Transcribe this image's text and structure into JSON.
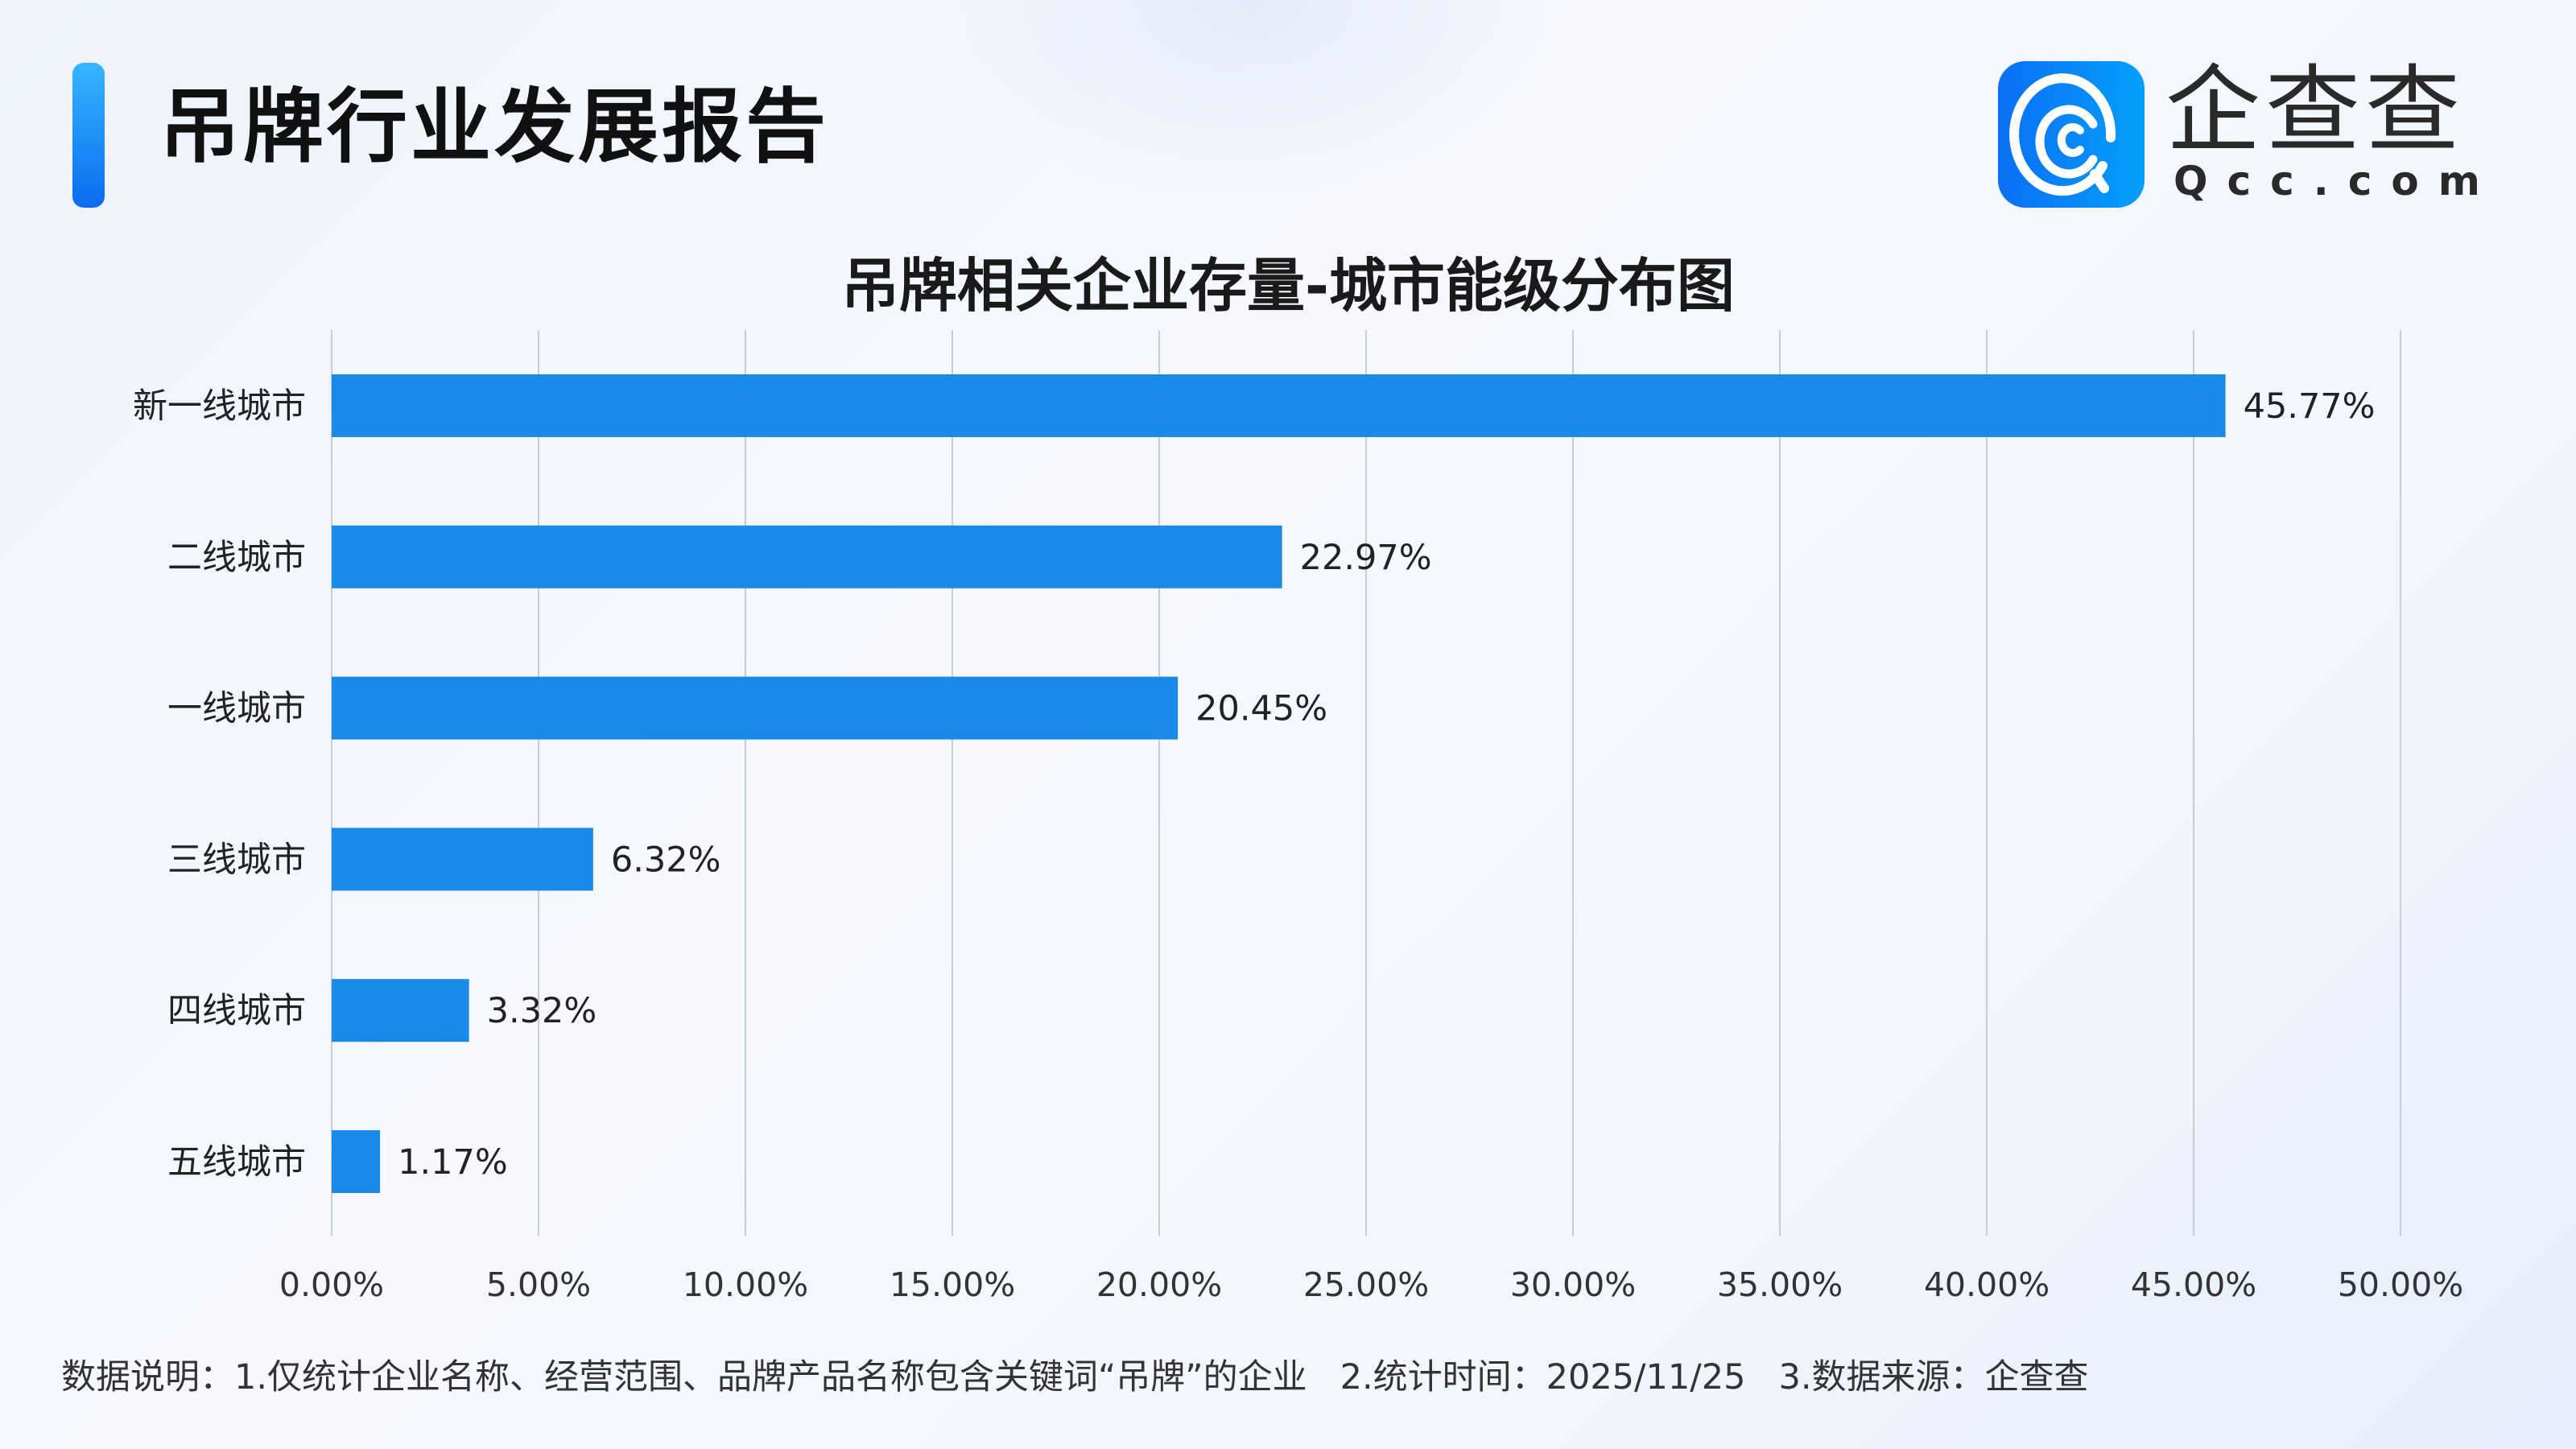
{
  "header": {
    "title": "吊牌行业发展报告"
  },
  "logo": {
    "text": "企查查",
    "sub": "Qcc.com"
  },
  "chart_data": {
    "type": "bar",
    "orientation": "horizontal",
    "title": "吊牌相关企业存量-城市能级分布图",
    "categories": [
      "新一线城市",
      "二线城市",
      "一线城市",
      "三线城市",
      "四线城市",
      "五线城市"
    ],
    "values": [
      45.77,
      22.97,
      20.45,
      6.32,
      3.32,
      1.17
    ],
    "data_labels": [
      "45.77%",
      "22.97%",
      "20.45%",
      "6.32%",
      "3.32%",
      "1.17%"
    ],
    "xlim": [
      0,
      50
    ],
    "xticks": [
      "0.00%",
      "5.00%",
      "10.00%",
      "15.00%",
      "20.00%",
      "25.00%",
      "30.00%",
      "35.00%",
      "40.00%",
      "45.00%",
      "50.00%"
    ],
    "grid": true,
    "bar_color": "#1a8ae8"
  },
  "footer": {
    "note": "数据说明：1.仅统计企业名称、经营范围、品牌产品名称包含关键词“吊牌”的企业   2.统计时间：2025/11/25   3.数据来源：企查查"
  }
}
